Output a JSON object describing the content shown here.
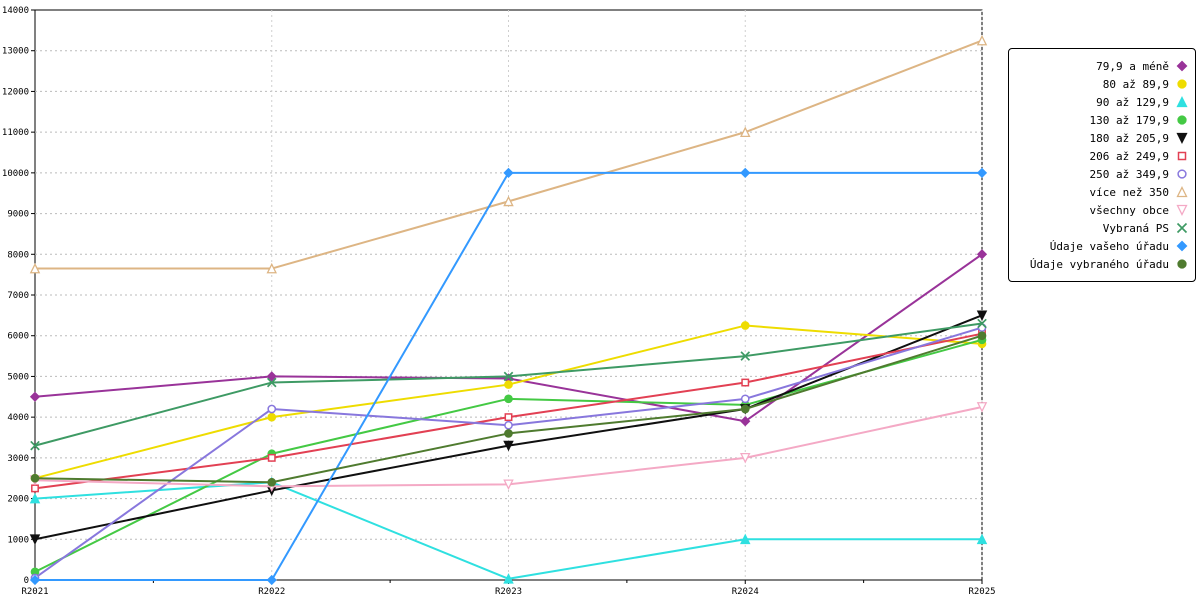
{
  "chart_data": {
    "type": "line",
    "categories": [
      "R2021",
      "R2022",
      "R2023",
      "R2024",
      "R2025"
    ],
    "ylim": [
      0,
      14000
    ],
    "ytick_step": 1000,
    "grid": true,
    "legend_position": "right",
    "series": [
      {
        "name": "79,9 a méně",
        "color": "#993399",
        "marker": "diamond",
        "filled": true,
        "values": [
          4500,
          5000,
          4950,
          3900,
          8000
        ]
      },
      {
        "name": "80 až 89,9",
        "color": "#EEDC00",
        "marker": "circle",
        "filled": true,
        "values": [
          2500,
          4000,
          4800,
          6250,
          5800
        ]
      },
      {
        "name": "90 až 129,9",
        "color": "#2FE0E0",
        "marker": "triangle-up",
        "filled": true,
        "values": [
          2000,
          2400,
          30,
          1000,
          1000
        ]
      },
      {
        "name": "130 až 179,9",
        "color": "#44C944",
        "marker": "circle",
        "filled": true,
        "values": [
          200,
          3100,
          4450,
          4300,
          5900
        ]
      },
      {
        "name": "180 až 205,9",
        "color": "#101010",
        "marker": "triangle-down",
        "filled": true,
        "values": [
          1000,
          2200,
          3300,
          4200,
          6500
        ]
      },
      {
        "name": "206 až 249,9",
        "color": "#E24053",
        "marker": "square",
        "filled": false,
        "values": [
          2250,
          3000,
          4000,
          4850,
          6050
        ]
      },
      {
        "name": "250 až 349,9",
        "color": "#8877DD",
        "marker": "circle",
        "filled": false,
        "values": [
          50,
          4200,
          3800,
          4450,
          6200
        ]
      },
      {
        "name": "více než 350",
        "color": "#DDB584",
        "marker": "triangle-up",
        "filled": false,
        "values": [
          7650,
          7650,
          9300,
          11000,
          13250
        ]
      },
      {
        "name": "všechny obce",
        "color": "#F4A9C5",
        "marker": "triangle-down",
        "filled": false,
        "values": [
          2450,
          2300,
          2350,
          3000,
          4250
        ]
      },
      {
        "name": "Vybraná PS",
        "color": "#3E9A64",
        "marker": "x",
        "filled": false,
        "values": [
          3300,
          4850,
          5000,
          5500,
          6300
        ]
      },
      {
        "name": "Údaje vašeho úřadu",
        "color": "#3399FF",
        "marker": "diamond",
        "filled": true,
        "values": [
          0,
          0,
          10000,
          10000,
          10000
        ]
      },
      {
        "name": "Údaje vybraného úřadu",
        "color": "#4F7B2F",
        "marker": "circle",
        "filled": true,
        "values": [
          2500,
          2400,
          3600,
          4200,
          6000
        ]
      }
    ]
  },
  "axes": {
    "x_tick_labels": [
      "R2021",
      "R2022",
      "R2023",
      "R2024",
      "R2025"
    ],
    "y_tick_labels": [
      "0",
      "1000",
      "2000",
      "3000",
      "4000",
      "5000",
      "6000",
      "7000",
      "8000",
      "9000",
      "10000",
      "11000",
      "12000",
      "13000",
      "14000"
    ]
  },
  "style_colors": {
    "plot_border": "#000000",
    "gridline": "#bbbbbb",
    "background": "#ffffff"
  }
}
